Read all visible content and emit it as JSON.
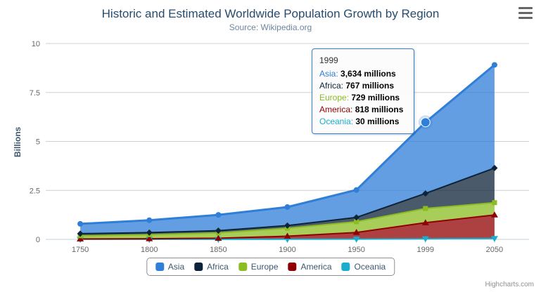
{
  "chart": {
    "title": "Historic and Estimated Worldwide Population Growth by Region",
    "subtitle": "Source: Wikipedia.org",
    "credit": "Highcharts.com"
  },
  "chart_data": {
    "type": "area",
    "stacked": true,
    "title": "Historic and Estimated Worldwide Population Growth by Region",
    "subtitle": "Source: Wikipedia.org",
    "categories": [
      "1750",
      "1800",
      "1850",
      "1900",
      "1950",
      "1999",
      "2050"
    ],
    "xlabel": "",
    "ylabel": "Billions",
    "ylim": [
      0,
      10
    ],
    "yticks": [
      0,
      2.5,
      5,
      7.5,
      10
    ],
    "ytick_labels": [
      "0",
      "2.5",
      "5",
      "7.5",
      "10"
    ],
    "values_unit": "millions",
    "grid": true,
    "legend_position": "bottom",
    "series": [
      {
        "name": "Asia",
        "color": "#2f7ed8",
        "marker": "circle",
        "values": [
          502,
          635,
          809,
          947,
          1402,
          3634,
          5268
        ]
      },
      {
        "name": "Africa",
        "color": "#0d233a",
        "marker": "diamond",
        "values": [
          106,
          107,
          111,
          133,
          221,
          767,
          1766
        ]
      },
      {
        "name": "Europe",
        "color": "#8bbc21",
        "marker": "square",
        "values": [
          163,
          203,
          276,
          408,
          547,
          729,
          628
        ]
      },
      {
        "name": "America",
        "color": "#910000",
        "marker": "triangle",
        "values": [
          18,
          31,
          54,
          156,
          339,
          818,
          1201
        ]
      },
      {
        "name": "Oceania",
        "color": "#1aadce",
        "marker": "triangle-down",
        "values": [
          2,
          2,
          2,
          6,
          13,
          30,
          46
        ]
      }
    ],
    "hover_point": {
      "series": "Asia",
      "category": "1999"
    }
  },
  "tooltip": {
    "header": "1999",
    "rows": [
      {
        "label": "Asia:",
        "value": "3,634 millions"
      },
      {
        "label": "Africa:",
        "value": "767 millions"
      },
      {
        "label": "Europe:",
        "value": "729 millions"
      },
      {
        "label": "America:",
        "value": "818 millions"
      },
      {
        "label": "Oceania:",
        "value": "30 millions"
      }
    ]
  },
  "colors": {
    "title": "#274b6d",
    "subtitle": "#6d869f",
    "axis_labels": "#666666",
    "gridline": "#d0d0d0",
    "axis_line": "#c0d0e0",
    "legend_border": "#909090",
    "credit": "#909090"
  }
}
